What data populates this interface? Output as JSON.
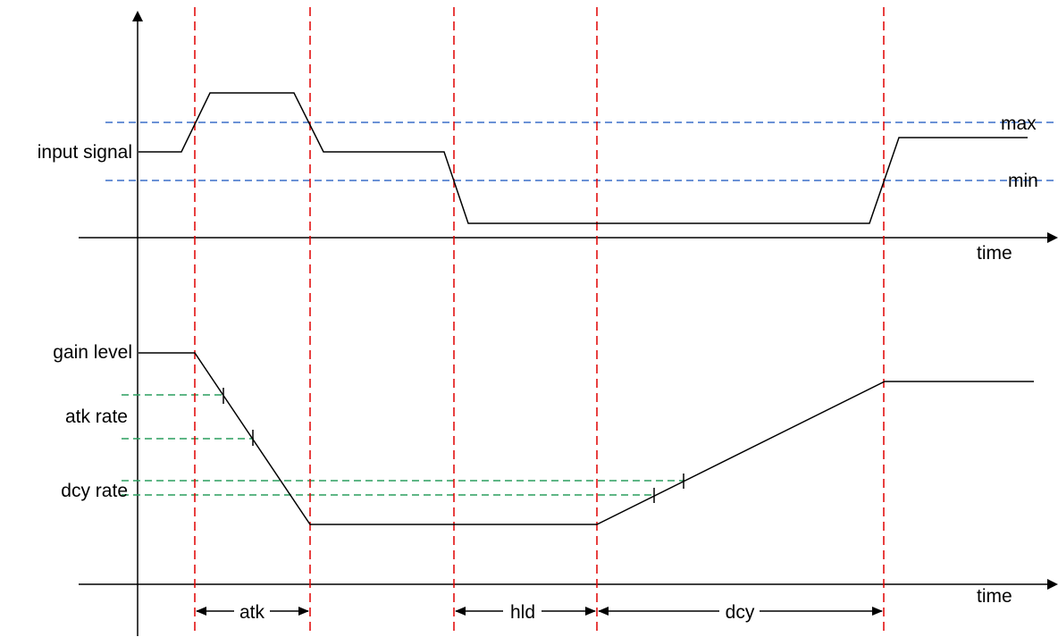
{
  "labels": {
    "input_signal": "input signal",
    "gain_level": "gain level",
    "atk_rate": "atk rate",
    "dcy_rate": "dcy rate",
    "max": "max",
    "min": "min",
    "time_top": "time",
    "time_bottom": "time",
    "atk": "atk",
    "hld": "hld",
    "dcy": "dcy"
  },
  "colors": {
    "axis": "#000000",
    "signal": "#000000",
    "event_marker": "#e00000",
    "threshold": "#3a6fc9",
    "rate_guide": "#2a9d5f"
  }
}
